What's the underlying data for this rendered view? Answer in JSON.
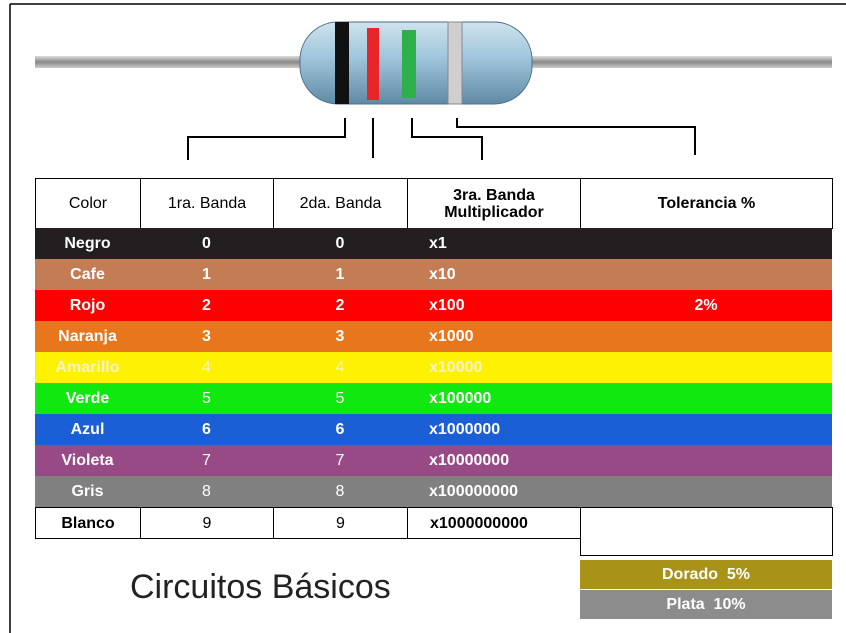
{
  "header": [
    "Color",
    "1ra. Banda",
    "2da. Banda",
    "3ra. Banda Multiplicador",
    "Tolerancia %"
  ],
  "rows": [
    {
      "name": "Negro",
      "band1": 0,
      "band2": 0,
      "multiplier": "x1",
      "color": "#231f20",
      "text_color": "#ffffff"
    },
    {
      "name": "Cafe",
      "band1": 1,
      "band2": 1,
      "multiplier": "x10",
      "color": "#c47c55",
      "text_color": "#ffffff"
    },
    {
      "name": "Rojo",
      "band1": 2,
      "band2": 2,
      "multiplier": "x100",
      "tolerance": "2%",
      "color": "#ff0000",
      "text_color": "#ffffff"
    },
    {
      "name": "Naranja",
      "band1": 3,
      "band2": 3,
      "multiplier": "x1000",
      "color": "#e8761c",
      "text_color": "#ffffff"
    },
    {
      "name": "Amarillo",
      "band1": 4,
      "band2": 4,
      "multiplier": "x10000",
      "color": "#fff200",
      "text_color": "#f6f2c8"
    },
    {
      "name": "Verde",
      "band1": 5,
      "band2": 5,
      "multiplier": "x100000",
      "color": "#10e810",
      "text_color": "#ffffff"
    },
    {
      "name": "Azul",
      "band1": 6,
      "band2": 6,
      "multiplier": "x1000000",
      "color": "#1a5fd6",
      "text_color": "#ffffff"
    },
    {
      "name": "Violeta",
      "band1": 7,
      "band2": 7,
      "multiplier": "x10000000",
      "color": "#984a86",
      "text_color": "#ffffff"
    },
    {
      "name": "Gris",
      "band1": 8,
      "band2": 8,
      "multiplier": "x100000000",
      "color": "#808080",
      "text_color": "#ffffff"
    },
    {
      "name": "Blanco",
      "band1": 9,
      "band2": 9,
      "multiplier": "x1000000000",
      "color": "#ffffff",
      "text_color": "#000000"
    }
  ],
  "extra_tolerances": [
    {
      "label": "Dorado  5%",
      "color": "#a89318"
    },
    {
      "label": "Plata  10%",
      "color": "#8c8c8c"
    }
  ],
  "footer": "Circuitos Básicos"
}
